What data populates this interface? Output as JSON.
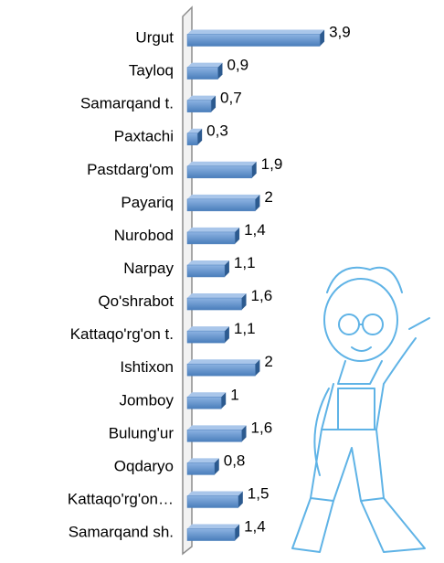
{
  "chart_data": {
    "type": "bar",
    "orientation": "horizontal",
    "categories": [
      "Urgut",
      "Tayloq",
      "Samarqand t.",
      "Paxtachi",
      "Pastdarg'om",
      "Payariq",
      "Nurobod",
      "Narpay",
      "Qo'shrabot",
      "Kattaqo'rg'on t.",
      "Ishtixon",
      "Jomboy",
      "Bulung'ur",
      "Oqdaryo",
      "Kattaqo'rg'on…",
      "Samarqand sh."
    ],
    "values": [
      3.9,
      0.9,
      0.7,
      0.3,
      1.9,
      2,
      1.4,
      1.1,
      1.6,
      1.1,
      2,
      1,
      1.6,
      0.8,
      1.5,
      1.4
    ],
    "value_labels": [
      "3,9",
      "0,9",
      "0,7",
      "0,3",
      "1,9",
      "2",
      "1,4",
      "1,1",
      "1,6",
      "1,1",
      "2",
      "1",
      "1,6",
      "0,8",
      "1,5",
      "1,4"
    ],
    "color": "#4f81bd"
  }
}
